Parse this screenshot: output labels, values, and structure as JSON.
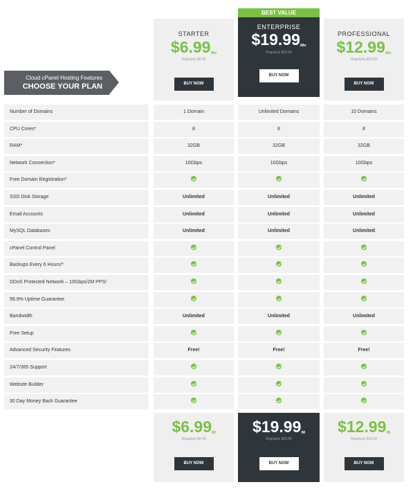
{
  "label": {
    "sub": "Cloud cPanel Hosting Features",
    "main": "CHOOSE YOUR PLAN"
  },
  "best_value": "BEST VALUE",
  "plans": [
    {
      "name": "STARTER",
      "price": "$6.99",
      "per": "/Mo",
      "per_bottom": "/M",
      "regular": "Regularly $9.99",
      "buy": "BUY NOW"
    },
    {
      "name": "ENTERPRISE",
      "price": "$19.99",
      "per": "/Mo",
      "per_bottom": "/M",
      "regular": "Regularly $29.99",
      "buy": "BUY NOW"
    },
    {
      "name": "PROFESSIONAL",
      "price": "$12.99",
      "per": "/Mo",
      "per_bottom": "/M",
      "regular": "Regularly $19.99",
      "buy": "BUY NOW"
    }
  ],
  "features": [
    {
      "label": "Number of Domains",
      "values": [
        "1 Domain",
        "Unlimited Domains",
        "10 Domains"
      ]
    },
    {
      "label": "CPU Cores*",
      "values": [
        "8",
        "8",
        "8"
      ]
    },
    {
      "label": "RAM*",
      "values": [
        "32GB",
        "32GB",
        "32GB"
      ]
    },
    {
      "label": "Network Connection*",
      "values": [
        "10Gbps",
        "10Gbps",
        "10Gbps"
      ]
    },
    {
      "label": "Free Domain Registration*",
      "values": [
        "check",
        "check",
        "check"
      ]
    },
    {
      "label": "SSD Disk Storage",
      "values": [
        "Unlimited",
        "Unlimited",
        "Unlimited"
      ]
    },
    {
      "label": "Email Accounts",
      "values": [
        "Unlimited",
        "Unlimited",
        "Unlimited"
      ]
    },
    {
      "label": "MySQL Databases",
      "values": [
        "Unlimited",
        "Unlimited",
        "Unlimited"
      ]
    },
    {
      "label": "cPanel Control Panel",
      "values": [
        "check",
        "check",
        "check"
      ]
    },
    {
      "label": "Backups Every 6 Hours!*",
      "values": [
        "check",
        "check",
        "check"
      ]
    },
    {
      "label": "DDoS Protected Network – 10Gbps/2M PPS!",
      "values": [
        "check",
        "check",
        "check"
      ]
    },
    {
      "label": "99.9% Uptime Guarantee",
      "values": [
        "check",
        "check",
        "check"
      ]
    },
    {
      "label": "Bandwidth",
      "values": [
        "Unlimited",
        "Unlimited",
        "Unlimited"
      ]
    },
    {
      "label": "Free Setup",
      "values": [
        "check",
        "check",
        "check"
      ]
    },
    {
      "label": "Advanced Security Features",
      "values": [
        "Free!",
        "Free!",
        "Free!"
      ]
    },
    {
      "label": "24/7/365 Support",
      "values": [
        "check",
        "check",
        "check"
      ]
    },
    {
      "label": "Website Builder",
      "values": [
        "check",
        "check",
        "check"
      ]
    },
    {
      "label": "30 Day Money Back Guarantee",
      "values": [
        "check",
        "check",
        "check"
      ]
    }
  ],
  "colors": {
    "accent_green": "#7ac143",
    "dark": "#2e363c",
    "row_bg": "#f1f1f1"
  }
}
